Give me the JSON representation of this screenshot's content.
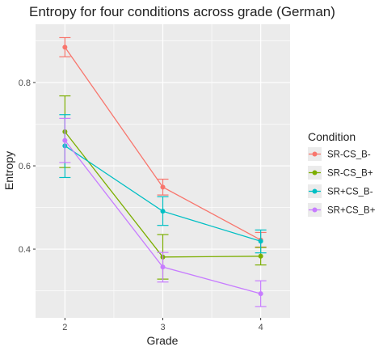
{
  "chart_data": {
    "type": "line",
    "title": "Entropy for four conditions across grade (German)",
    "xlabel": "Grade",
    "ylabel": "Entropy",
    "x": [
      2,
      3,
      4
    ],
    "x_ticks": [
      "2",
      "3",
      "4"
    ],
    "y_ticks": [
      "0.4",
      "0.6",
      "0.8"
    ],
    "xlim": [
      1.7,
      4.3
    ],
    "ylim": [
      0.235,
      0.94
    ],
    "grid": true,
    "legend_title": "Condition",
    "legend_position": "right",
    "series": [
      {
        "name": "SR-CS_B-",
        "color": "#F8766D",
        "values": [
          0.885,
          0.549,
          0.422
        ],
        "err_low": [
          0.862,
          0.53,
          0.405
        ],
        "err_high": [
          0.908,
          0.568,
          0.44
        ]
      },
      {
        "name": "SR-CS_B+",
        "color": "#7CAE00",
        "values": [
          0.682,
          0.381,
          0.383
        ],
        "err_low": [
          0.596,
          0.328,
          0.362
        ],
        "err_high": [
          0.768,
          0.435,
          0.404
        ]
      },
      {
        "name": "SR+CS_B-",
        "color": "#00BFC4",
        "values": [
          0.648,
          0.491,
          0.419
        ],
        "err_low": [
          0.572,
          0.457,
          0.391
        ],
        "err_high": [
          0.723,
          0.526,
          0.446
        ]
      },
      {
        "name": "SR+CS_B+",
        "color": "#C77CFF",
        "values": [
          0.661,
          0.357,
          0.293
        ],
        "err_low": [
          0.608,
          0.321,
          0.262
        ],
        "err_high": [
          0.714,
          0.392,
          0.324
        ]
      }
    ]
  }
}
